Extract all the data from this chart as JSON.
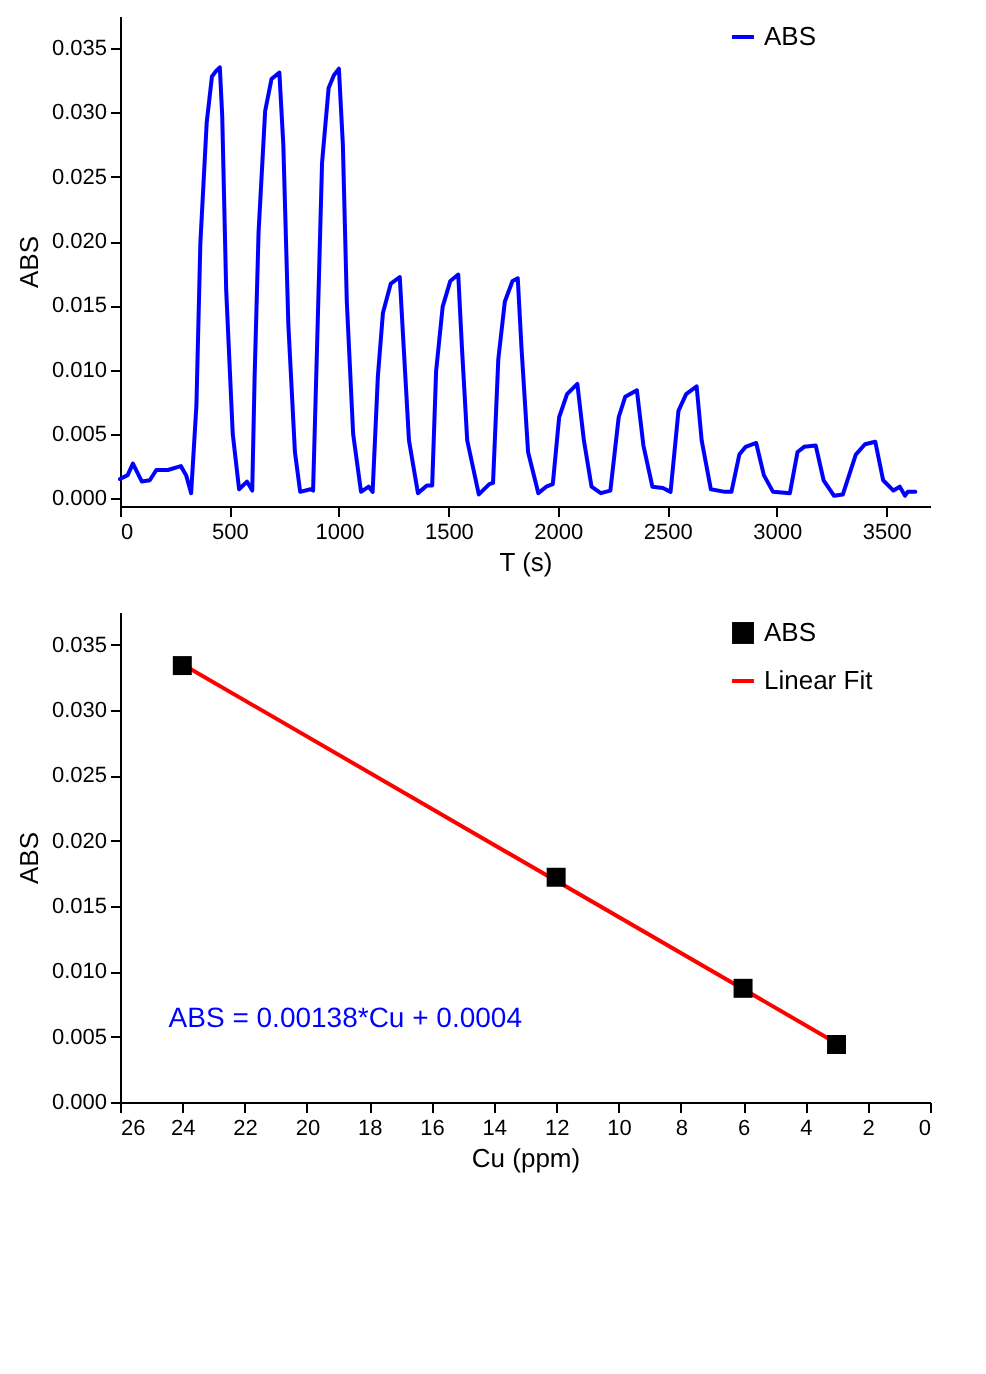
{
  "chart_data": [
    {
      "type": "line",
      "xlabel": "T (s)",
      "ylabel": "ABS",
      "legend": "top right",
      "grid": false,
      "xlim": [
        0,
        3700
      ],
      "xticks": [
        0,
        500,
        1000,
        1500,
        2000,
        2500,
        3000,
        3500
      ],
      "ylim": [
        -0.0006,
        0.0375
      ],
      "yticks": [
        {
          "value": 0,
          "label": "0.000"
        },
        {
          "value": 0.005,
          "label": "0.005"
        },
        {
          "value": 0.01,
          "label": "0.010"
        },
        {
          "value": 0.015,
          "label": "0.015"
        },
        {
          "value": 0.02,
          "label": "0.020"
        },
        {
          "value": 0.025,
          "label": "0.025"
        },
        {
          "value": 0.03,
          "label": "0.030"
        },
        {
          "value": 0.035,
          "label": "0.035"
        }
      ],
      "x": [
        0,
        35,
        59,
        100,
        136,
        166,
        219,
        278,
        302,
        325,
        349,
        367,
        396,
        420,
        438,
        456,
        467,
        485,
        515,
        544,
        580,
        604,
        615,
        633,
        663,
        692,
        728,
        746,
        769,
        799,
        823,
        870,
        882,
        900,
        923,
        953,
        977,
        1000,
        1018,
        1036,
        1065,
        1101,
        1136,
        1154,
        1178,
        1201,
        1237,
        1278,
        1296,
        1320,
        1361,
        1402,
        1426,
        1444,
        1474,
        1509,
        1545,
        1562,
        1586,
        1639,
        1687,
        1704,
        1728,
        1758,
        1793,
        1817,
        1834,
        1864,
        1911,
        1947,
        1977,
        2006,
        2042,
        2089,
        2119,
        2154,
        2196,
        2240,
        2278,
        2308,
        2361,
        2391,
        2432,
        2480,
        2515,
        2551,
        2586,
        2634,
        2657,
        2699,
        2764,
        2793,
        2829,
        2858,
        2906,
        2941,
        2983,
        3060,
        3095,
        3125,
        3178,
        3214,
        3261,
        3302,
        3361,
        3403,
        3450,
        3486,
        3533,
        3562,
        3586,
        3598,
        3633
      ],
      "series": [
        {
          "name": "ABS",
          "color": "#0000ff",
          "values": [
            0.0015,
            0.0018,
            0.0027,
            0.0013,
            0.0014,
            0.0022,
            0.0022,
            0.0025,
            0.0018,
            0.0004,
            0.0072,
            0.0198,
            0.0292,
            0.0328,
            0.0332,
            0.0335,
            0.0297,
            0.0162,
            0.005,
            0.0007,
            0.0013,
            0.0006,
            0.0095,
            0.0207,
            0.0301,
            0.0326,
            0.0331,
            0.0275,
            0.0135,
            0.0036,
            0.0005,
            0.0007,
            0.0006,
            0.0117,
            0.0261,
            0.0319,
            0.0329,
            0.0334,
            0.0275,
            0.0153,
            0.005,
            0.0005,
            0.0009,
            0.0005,
            0.0095,
            0.0144,
            0.0167,
            0.0172,
            0.0117,
            0.0045,
            0.0004,
            0.001,
            0.001,
            0.0099,
            0.0149,
            0.0169,
            0.0174,
            0.0117,
            0.0045,
            0.0003,
            0.0011,
            0.0012,
            0.0108,
            0.0153,
            0.0169,
            0.0171,
            0.0117,
            0.0036,
            0.0004,
            0.0009,
            0.0011,
            0.0063,
            0.0081,
            0.0089,
            0.0045,
            0.0009,
            0.0004,
            0.0006,
            0.0063,
            0.0079,
            0.0084,
            0.0041,
            0.0009,
            0.0008,
            0.0005,
            0.0068,
            0.0081,
            0.0087,
            0.0045,
            0.0007,
            0.0005,
            0.0005,
            0.0034,
            0.004,
            0.0043,
            0.0018,
            0.0005,
            0.0004,
            0.0036,
            0.004,
            0.0041,
            0.0014,
            0.0002,
            0.0003,
            0.0034,
            0.0042,
            0.0044,
            0.0014,
            0.0006,
            0.0009,
            0.0002,
            0.0005,
            0.0005
          ]
        }
      ]
    },
    {
      "type": "scatter",
      "xlabel": "Cu (ppm)",
      "ylabel": "ABS",
      "legend": "top right",
      "grid": false,
      "xlim": [
        26,
        0
      ],
      "xticks": [
        26,
        24,
        22,
        20,
        18,
        16,
        14,
        12,
        10,
        8,
        6,
        4,
        2,
        0
      ],
      "ylim": [
        0,
        0.0375
      ],
      "yticks": [
        {
          "value": 0,
          "label": "0.000"
        },
        {
          "value": 0.005,
          "label": "0.005"
        },
        {
          "value": 0.01,
          "label": "0.010"
        },
        {
          "value": 0.015,
          "label": "0.015"
        },
        {
          "value": 0.02,
          "label": "0.020"
        },
        {
          "value": 0.025,
          "label": "0.025"
        },
        {
          "value": 0.03,
          "label": "0.030"
        },
        {
          "value": 0.035,
          "label": "0.035"
        }
      ],
      "annotations": [
        "ABS = 0.00138*Cu + 0.0004"
      ],
      "series": [
        {
          "name": "ABS",
          "type": "scatter",
          "marker": "square",
          "color": "#000000",
          "x": [
            24,
            12,
            6,
            3
          ],
          "values": [
            0.0334,
            0.0172,
            0.0087,
            0.0044
          ]
        },
        {
          "name": "Linear Fit",
          "type": "line",
          "color": "#ff0000",
          "x": [
            24,
            3
          ],
          "values": [
            0.0335,
            0.0045
          ]
        }
      ]
    }
  ]
}
